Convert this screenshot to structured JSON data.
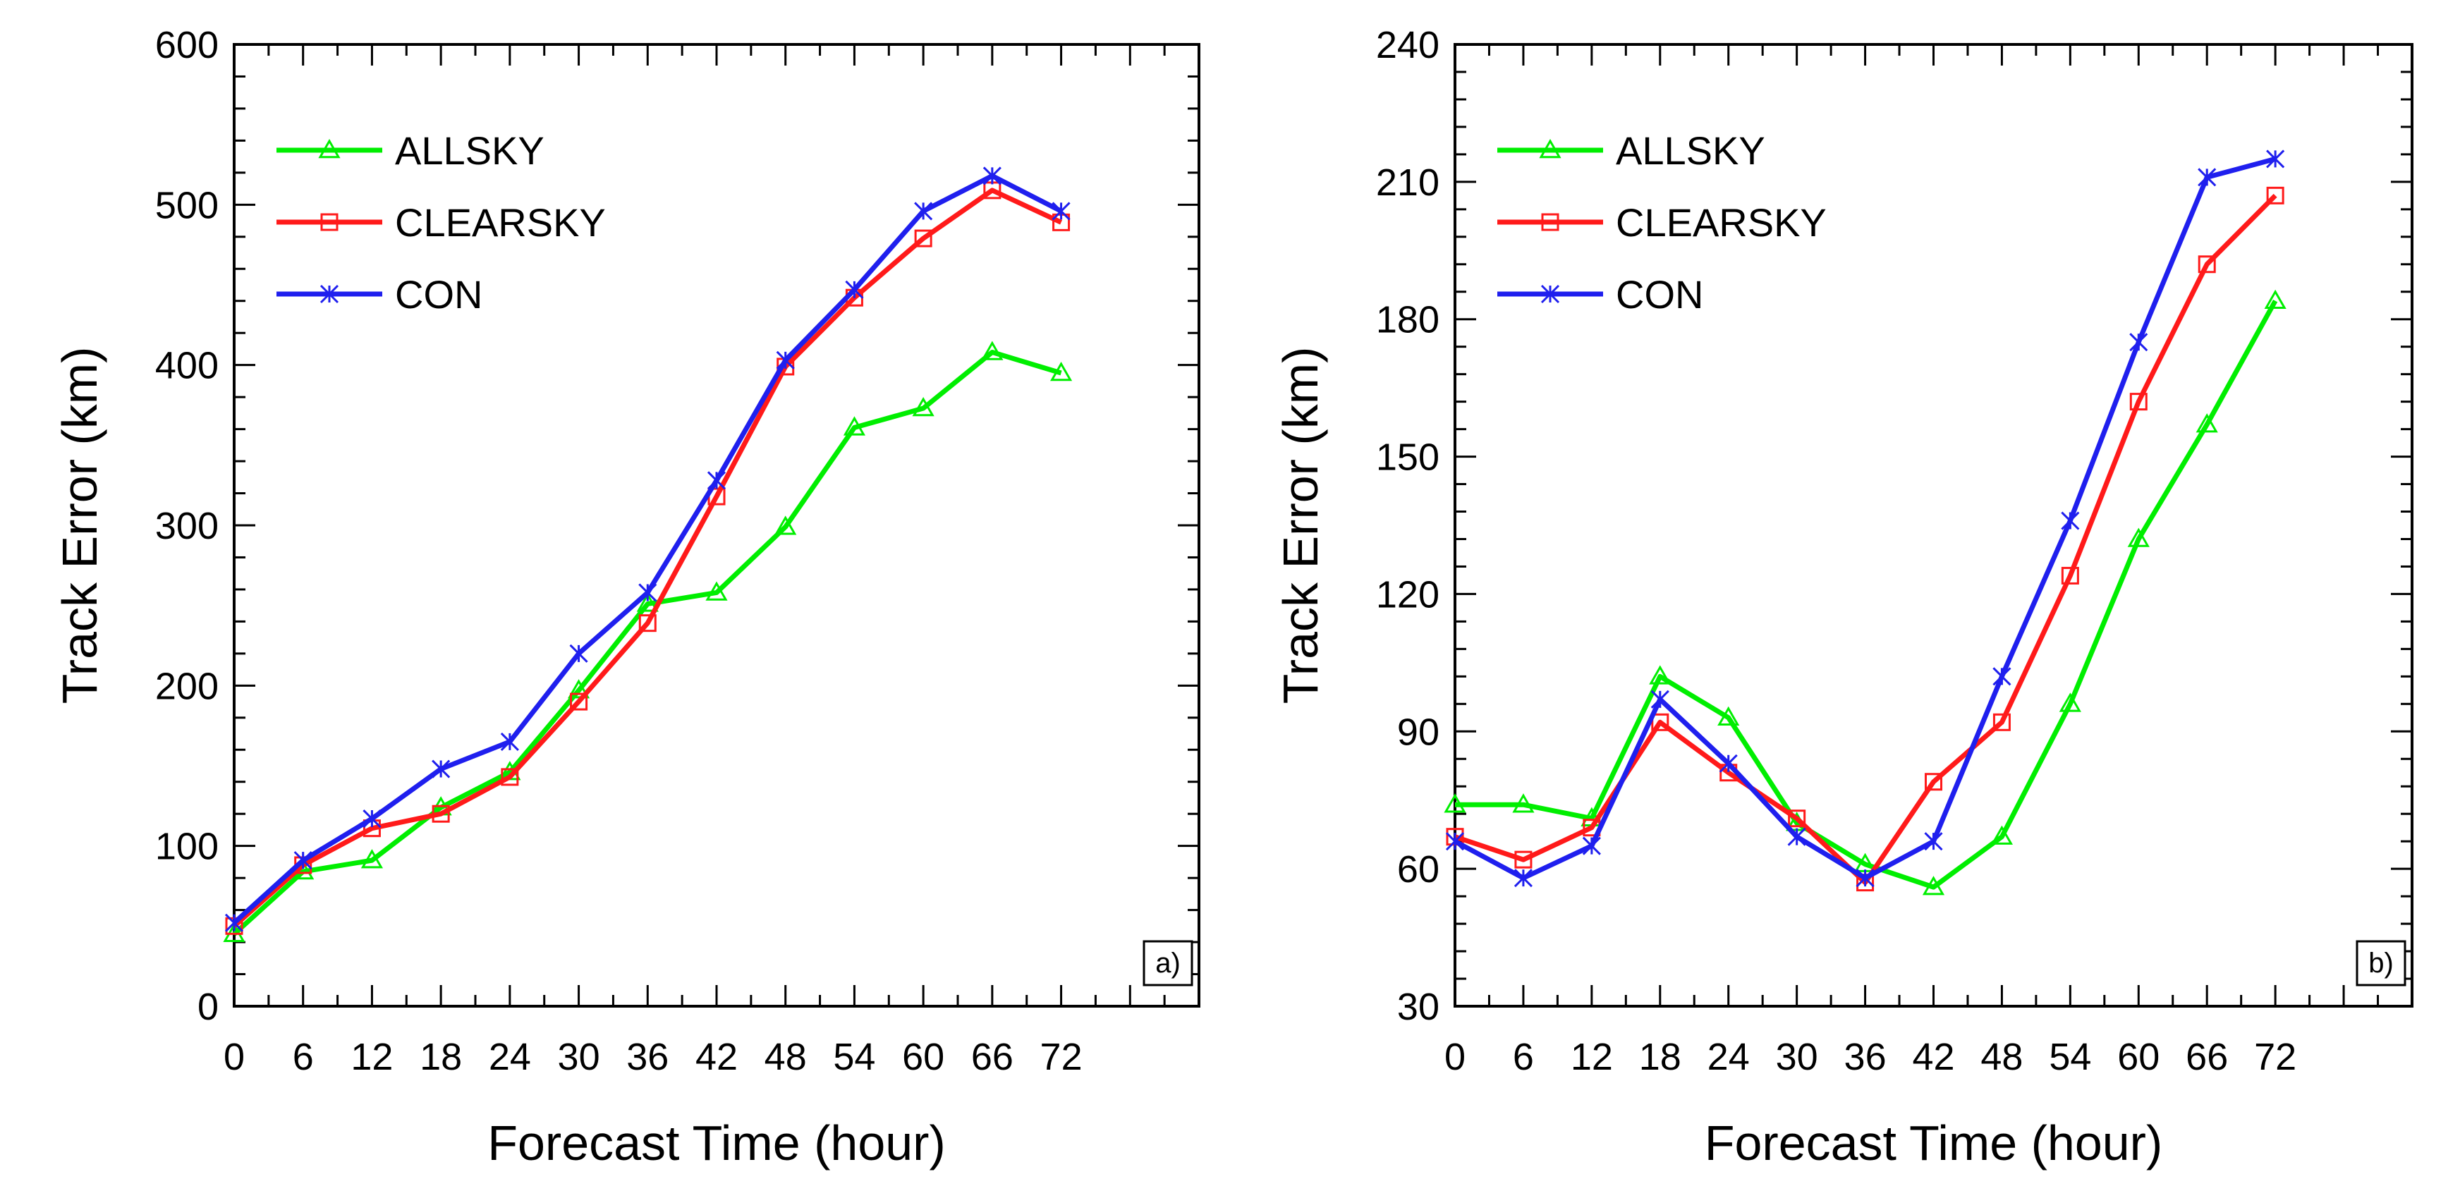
{
  "chart_data": [
    {
      "type": "line",
      "panel_label": "a)",
      "xlabel": "Forecast Time (hour)",
      "ylabel": "Track Error (km)",
      "xlim": [
        0,
        84
      ],
      "ylim": [
        0,
        600
      ],
      "x_ticks": [
        0,
        6,
        12,
        18,
        24,
        30,
        36,
        42,
        48,
        54,
        60,
        66,
        72
      ],
      "y_ticks": [
        0,
        100,
        200,
        300,
        400,
        500,
        600
      ],
      "legend_position": "top-left",
      "x": [
        0,
        6,
        12,
        18,
        24,
        30,
        36,
        42,
        48,
        54,
        60,
        66,
        72
      ],
      "series": [
        {
          "name": "ALLSKY",
          "color": "#00ee00",
          "marker": "triangle",
          "values": [
            45,
            84,
            91,
            124,
            146,
            197,
            251,
            258,
            299,
            361,
            373,
            408,
            395
          ]
        },
        {
          "name": "CLEARSKY",
          "color": "#ff1a1a",
          "marker": "square",
          "values": [
            50,
            88,
            111,
            120,
            143,
            190,
            239,
            318,
            399,
            442,
            479,
            509,
            489
          ]
        },
        {
          "name": "CON",
          "color": "#1f1fee",
          "marker": "star",
          "values": [
            52,
            91,
            117,
            148,
            165,
            220,
            258,
            328,
            403,
            447,
            496,
            518,
            496
          ]
        }
      ]
    },
    {
      "type": "line",
      "panel_label": "b)",
      "xlabel": "Forecast Time (hour)",
      "ylabel": "Track Error (km)",
      "xlim": [
        0,
        84
      ],
      "ylim": [
        30,
        240
      ],
      "x_ticks": [
        0,
        6,
        12,
        18,
        24,
        30,
        36,
        42,
        48,
        54,
        60,
        66,
        72
      ],
      "y_ticks": [
        30,
        60,
        90,
        120,
        150,
        180,
        210,
        240
      ],
      "legend_position": "top-left",
      "x": [
        0,
        6,
        12,
        18,
        24,
        30,
        36,
        42,
        48,
        54,
        60,
        66,
        72
      ],
      "series": [
        {
          "name": "ALLSKY",
          "color": "#00ee00",
          "marker": "triangle",
          "values": [
            74,
            74,
            71,
            102,
            93,
            70,
            61,
            56,
            67,
            96,
            132,
            157,
            184
          ]
        },
        {
          "name": "CLEARSKY",
          "color": "#ff1a1a",
          "marker": "square",
          "values": [
            67,
            62,
            69,
            92,
            81,
            71,
            57,
            79,
            92,
            124,
            162,
            192,
            207
          ]
        },
        {
          "name": "CON",
          "color": "#1f1fee",
          "marker": "star",
          "values": [
            66,
            58,
            65,
            97,
            83,
            67,
            58,
            66,
            102,
            136,
            175,
            211,
            215
          ]
        }
      ]
    }
  ]
}
